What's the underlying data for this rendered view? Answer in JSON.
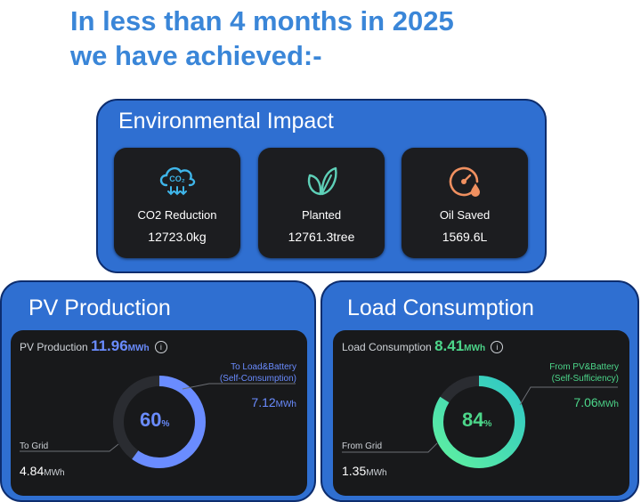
{
  "headline": {
    "line1": "In less than 4 months in 2025",
    "line2": "we have achieved:-"
  },
  "environmental": {
    "title": "Environmental Impact",
    "cards": [
      {
        "icon": "co2-cloud-icon",
        "label": "CO2 Reduction",
        "value": "12723.0kg"
      },
      {
        "icon": "leaf-icon",
        "label": "Planted",
        "value": "12761.3tree"
      },
      {
        "icon": "oil-gauge-icon",
        "label": "Oil Saved",
        "value": "1569.6L"
      }
    ]
  },
  "pv": {
    "title": "PV Production",
    "header_label": "PV Production",
    "header_value": "11.96",
    "header_unit": "MWh",
    "info": "i",
    "right_label_1": "To Load&Battery",
    "right_label_2": "(Self-Consumption)",
    "right_value": "7.12",
    "right_unit": "MWh",
    "left_label": "To Grid",
    "left_value": "4.84",
    "left_unit": "MWh",
    "percent": "60",
    "percent_sign": "%",
    "fraction": 0.6,
    "accent": "#6a8cff"
  },
  "load": {
    "title": "Load Consumption",
    "header_label": "Load Consumption",
    "header_value": "8.41",
    "header_unit": "MWh",
    "info": "i",
    "right_label_1": "From PV&Battery",
    "right_label_2": "(Self-Sufficiency)",
    "right_value": "7.06",
    "right_unit": "MWh",
    "left_label": "From Grid",
    "left_value": "1.35",
    "left_unit": "MWh",
    "percent": "84",
    "percent_sign": "%",
    "fraction": 0.84,
    "accent": "#4cd68a"
  }
}
